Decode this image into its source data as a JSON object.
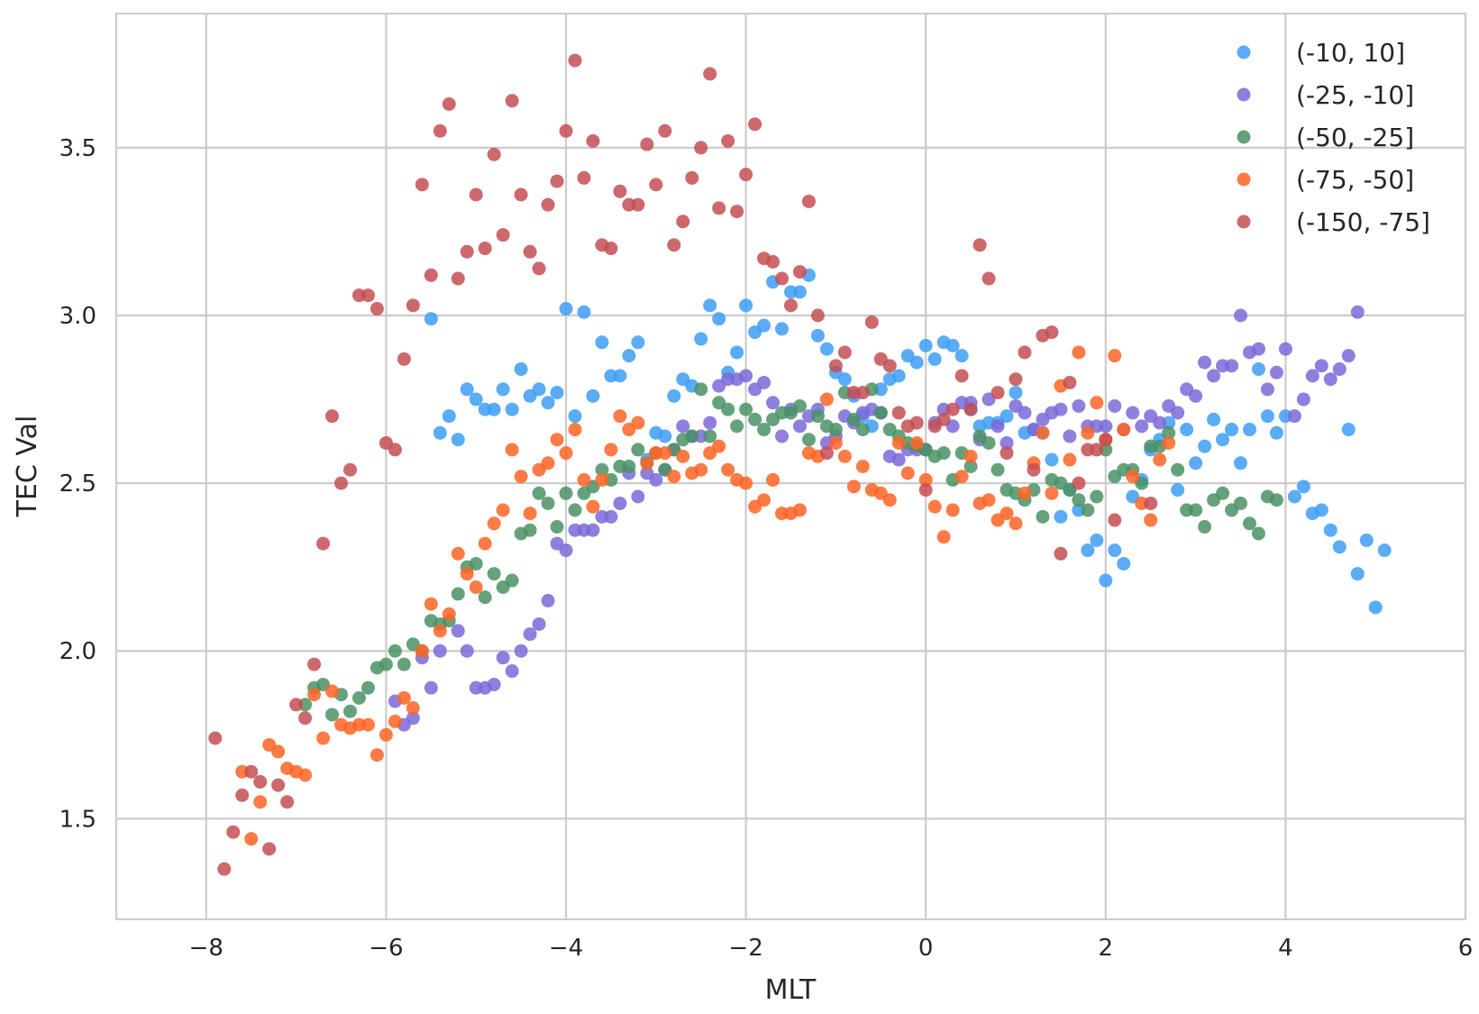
{
  "chart_data": {
    "type": "scatter",
    "title": "",
    "xlabel": "MLT",
    "ylabel": "TEC Val",
    "xlim": [
      -9,
      6
    ],
    "ylim": [
      1.2,
      3.9
    ],
    "xticks": [
      -8,
      -6,
      -4,
      -2,
      0,
      2,
      4,
      6
    ],
    "yticks": [
      1.5,
      2.0,
      2.5,
      3.0,
      3.5
    ],
    "xtick_labels": [
      "−8",
      "−6",
      "−4",
      "−2",
      "0",
      "2",
      "4",
      "6"
    ],
    "ytick_labels": [
      "1.5",
      "2.0",
      "2.5",
      "3.0",
      "3.5"
    ],
    "grid": true,
    "legend_position": "top-right",
    "series": [
      {
        "name": "(-10, 10]",
        "color": "#3d9df5",
        "x": [
          -5.5,
          -5.4,
          -5.3,
          -5.2,
          -5.1,
          -5.0,
          -4.9,
          -4.8,
          -4.7,
          -4.6,
          -4.5,
          -4.4,
          -4.3,
          -4.2,
          -4.1,
          -4.0,
          -3.9,
          -3.8,
          -3.7,
          -3.6,
          -3.5,
          -3.4,
          -3.3,
          -3.2,
          -3.1,
          -3.0,
          -2.9,
          -2.8,
          -2.7,
          -2.6,
          -2.5,
          -2.4,
          -2.3,
          -2.2,
          -2.1,
          -2.0,
          -1.9,
          -1.8,
          -1.7,
          -1.6,
          -1.5,
          -1.4,
          -1.3,
          -1.2,
          -1.1,
          -1.0,
          -0.9,
          -0.8,
          -0.7,
          -0.6,
          -0.5,
          -0.4,
          -0.3,
          -0.2,
          -0.1,
          0.0,
          0.1,
          0.2,
          0.3,
          0.4,
          0.5,
          0.6,
          0.7,
          0.8,
          0.9,
          1.0,
          1.1,
          1.2,
          1.3,
          1.4,
          1.5,
          1.6,
          1.7,
          1.8,
          1.9,
          2.0,
          2.1,
          2.2,
          2.3,
          2.4,
          2.5,
          2.6,
          2.7,
          2.8,
          2.9,
          3.0,
          3.1,
          3.2,
          3.3,
          3.4,
          3.5,
          3.6,
          3.7,
          3.8,
          3.9,
          4.0,
          4.1,
          4.2,
          4.3,
          4.4,
          4.5,
          4.6,
          4.7,
          4.8,
          4.9,
          5.0,
          5.1
        ],
        "y": [
          2.99,
          2.65,
          2.7,
          2.63,
          2.78,
          2.75,
          2.72,
          2.72,
          2.78,
          2.72,
          2.84,
          2.76,
          2.78,
          2.74,
          2.77,
          3.02,
          2.7,
          3.01,
          2.76,
          2.92,
          2.82,
          2.82,
          2.88,
          2.92,
          2.57,
          2.65,
          2.64,
          2.76,
          2.81,
          2.79,
          2.93,
          3.03,
          2.99,
          2.83,
          2.89,
          3.03,
          2.95,
          2.97,
          3.1,
          2.96,
          3.07,
          3.07,
          3.12,
          2.94,
          2.9,
          2.83,
          2.81,
          2.76,
          2.7,
          2.67,
          2.78,
          2.81,
          2.82,
          2.88,
          2.86,
          2.91,
          2.87,
          2.92,
          2.91,
          2.88,
          2.72,
          2.67,
          2.68,
          2.68,
          2.7,
          2.77,
          2.65,
          2.66,
          2.65,
          2.57,
          2.4,
          2.48,
          2.42,
          2.3,
          2.33,
          2.21,
          2.3,
          2.26,
          2.46,
          2.51,
          2.6,
          2.63,
          2.68,
          2.48,
          2.66,
          2.56,
          2.61,
          2.69,
          2.63,
          2.66,
          2.56,
          2.66,
          2.84,
          2.7,
          2.65,
          2.7,
          2.46,
          2.49,
          2.41,
          2.42,
          2.36,
          2.31,
          2.66,
          2.23,
          2.33,
          2.13,
          2.3
        ]
      },
      {
        "name": "(-25, -10]",
        "color": "#7b68d8",
        "x": [
          -5.8,
          -5.7,
          -5.6,
          -5.5,
          -5.4,
          -5.2,
          -5.1,
          -4.9,
          -4.8,
          -4.7,
          -4.6,
          -4.5,
          -4.4,
          -4.3,
          -4.2,
          -4.1,
          -4.0,
          -3.9,
          -3.8,
          -3.7,
          -3.6,
          -3.5,
          -3.4,
          -3.3,
          -3.2,
          -3.1,
          -3.0,
          -2.9,
          -2.8,
          -2.7,
          -2.6,
          -2.5,
          -2.4,
          -2.3,
          -2.2,
          -2.1,
          -2.0,
          -1.9,
          -1.8,
          -1.7,
          -1.6,
          -1.5,
          -1.4,
          -1.3,
          -1.2,
          -1.1,
          -1.0,
          -0.9,
          -0.8,
          -0.7,
          -0.6,
          -0.5,
          -0.4,
          -0.3,
          -0.2,
          -0.1,
          0.0,
          0.1,
          0.2,
          0.3,
          0.4,
          0.5,
          0.6,
          0.7,
          0.8,
          0.9,
          1.0,
          1.1,
          1.2,
          1.3,
          1.4,
          1.5,
          1.6,
          1.7,
          1.8,
          1.9,
          2.0,
          2.1,
          2.2,
          2.3,
          2.4,
          2.5,
          2.6,
          2.7,
          2.8,
          2.9,
          3.0,
          3.1,
          3.2,
          3.3,
          3.4,
          3.5,
          3.6,
          3.7,
          3.8,
          3.9,
          4.0,
          4.1,
          4.2,
          4.3,
          4.4,
          4.5,
          4.6,
          4.7,
          4.8,
          -5.9,
          -5.0
        ],
        "y": [
          1.78,
          1.8,
          1.98,
          1.89,
          2.0,
          2.06,
          2.0,
          1.89,
          1.9,
          1.98,
          1.94,
          2.0,
          2.05,
          2.08,
          2.15,
          2.32,
          2.3,
          2.36,
          2.36,
          2.36,
          2.4,
          2.4,
          2.44,
          2.53,
          2.46,
          2.53,
          2.51,
          2.54,
          2.6,
          2.67,
          2.64,
          2.64,
          2.68,
          2.79,
          2.81,
          2.81,
          2.82,
          2.78,
          2.8,
          2.74,
          2.64,
          2.72,
          2.67,
          2.7,
          2.72,
          2.62,
          2.64,
          2.7,
          2.68,
          2.71,
          2.72,
          2.71,
          2.58,
          2.57,
          2.6,
          2.6,
          2.6,
          2.68,
          2.72,
          2.67,
          2.74,
          2.74,
          2.63,
          2.75,
          2.67,
          2.62,
          2.73,
          2.71,
          2.66,
          2.69,
          2.71,
          2.72,
          2.64,
          2.73,
          2.67,
          2.67,
          2.67,
          2.73,
          2.66,
          2.71,
          2.67,
          2.7,
          2.68,
          2.73,
          2.71,
          2.78,
          2.76,
          2.86,
          2.82,
          2.85,
          2.85,
          3.0,
          2.89,
          2.9,
          2.78,
          2.83,
          2.9,
          2.7,
          2.75,
          2.82,
          2.85,
          2.81,
          2.84,
          2.88,
          3.01,
          1.85,
          1.89
        ]
      },
      {
        "name": "(-50, -25]",
        "color": "#4a9265",
        "x": [
          -6.9,
          -6.8,
          -6.7,
          -6.6,
          -6.5,
          -6.4,
          -6.3,
          -6.2,
          -6.1,
          -6.0,
          -5.9,
          -5.8,
          -5.7,
          -5.6,
          -5.5,
          -5.4,
          -5.3,
          -5.2,
          -5.1,
          -5.0,
          -4.9,
          -4.8,
          -4.7,
          -4.6,
          -4.5,
          -4.4,
          -4.3,
          -4.2,
          -4.1,
          -4.0,
          -3.9,
          -3.8,
          -3.7,
          -3.6,
          -3.5,
          -3.4,
          -3.3,
          -3.2,
          -3.1,
          -3.0,
          -2.9,
          -2.8,
          -2.7,
          -2.6,
          -2.5,
          -2.4,
          -2.3,
          -2.2,
          -2.1,
          -2.0,
          -1.9,
          -1.8,
          -1.7,
          -1.6,
          -1.5,
          -1.4,
          -1.3,
          -1.2,
          -1.1,
          -1.0,
          -0.9,
          -0.8,
          -0.7,
          -0.6,
          -0.5,
          -0.4,
          -0.3,
          -0.2,
          -0.1,
          0.0,
          0.1,
          0.2,
          0.3,
          0.4,
          0.5,
          0.6,
          0.7,
          0.8,
          0.9,
          1.0,
          1.1,
          1.2,
          1.3,
          1.4,
          1.5,
          1.6,
          1.7,
          1.8,
          1.9,
          2.0,
          2.1,
          2.2,
          2.3,
          2.4,
          2.5,
          2.6,
          2.7,
          2.8,
          2.9,
          3.0,
          3.1,
          3.2,
          3.3,
          3.4,
          3.5,
          3.6,
          3.7,
          3.8,
          3.9
        ],
        "y": [
          1.84,
          1.89,
          1.9,
          1.81,
          1.87,
          1.82,
          1.86,
          1.89,
          1.95,
          1.96,
          2.0,
          1.96,
          2.02,
          2.0,
          2.09,
          2.08,
          2.09,
          2.17,
          2.25,
          2.26,
          2.16,
          2.23,
          2.19,
          2.21,
          2.35,
          2.36,
          2.47,
          2.44,
          2.37,
          2.47,
          2.42,
          2.47,
          2.49,
          2.54,
          2.51,
          2.55,
          2.55,
          2.6,
          2.56,
          2.59,
          2.54,
          2.6,
          2.63,
          2.64,
          2.78,
          2.64,
          2.74,
          2.72,
          2.67,
          2.72,
          2.69,
          2.66,
          2.69,
          2.71,
          2.71,
          2.73,
          2.63,
          2.7,
          2.67,
          2.66,
          2.77,
          2.69,
          2.66,
          2.78,
          2.71,
          2.66,
          2.64,
          2.62,
          2.61,
          2.6,
          2.58,
          2.59,
          2.51,
          2.59,
          2.55,
          2.64,
          2.62,
          2.54,
          2.48,
          2.47,
          2.45,
          2.48,
          2.4,
          2.51,
          2.5,
          2.48,
          2.45,
          2.42,
          2.46,
          2.6,
          2.52,
          2.54,
          2.54,
          2.5,
          2.61,
          2.61,
          2.65,
          2.54,
          2.42,
          2.42,
          2.37,
          2.45,
          2.47,
          2.42,
          2.44,
          2.38,
          2.35,
          2.46,
          2.45
        ]
      },
      {
        "name": "(-75, -50]",
        "color": "#ff6424",
        "x": [
          -7.6,
          -7.5,
          -7.4,
          -7.3,
          -7.2,
          -7.1,
          -7.0,
          -6.9,
          -6.8,
          -6.7,
          -6.6,
          -6.5,
          -6.4,
          -6.3,
          -6.2,
          -6.1,
          -6.0,
          -5.9,
          -5.8,
          -5.7,
          -5.6,
          -5.5,
          -5.4,
          -5.3,
          -5.2,
          -5.1,
          -5.0,
          -4.9,
          -4.8,
          -4.7,
          -4.6,
          -4.5,
          -4.4,
          -4.3,
          -4.2,
          -4.1,
          -4.0,
          -3.9,
          -3.8,
          -3.7,
          -3.6,
          -3.5,
          -3.4,
          -3.3,
          -3.2,
          -3.1,
          -3.0,
          -2.9,
          -2.8,
          -2.7,
          -2.6,
          -2.5,
          -2.4,
          -2.3,
          -2.2,
          -2.1,
          -2.0,
          -1.9,
          -1.8,
          -1.7,
          -1.6,
          -1.5,
          -1.4,
          -1.3,
          -1.2,
          -1.1,
          -1.0,
          -0.9,
          -0.8,
          -0.7,
          -0.6,
          -0.5,
          -0.4,
          -0.3,
          -0.2,
          -0.1,
          0.0,
          0.1,
          0.2,
          0.3,
          0.4,
          0.5,
          0.6,
          0.7,
          0.8,
          0.9,
          1.0,
          1.1,
          1.2,
          1.3,
          1.4,
          1.5,
          1.6,
          1.7,
          1.8,
          1.9,
          2.0,
          2.1,
          2.2,
          2.3,
          2.4,
          2.5,
          2.6,
          2.7
        ],
        "y": [
          1.64,
          1.44,
          1.55,
          1.72,
          1.7,
          1.65,
          1.64,
          1.63,
          1.87,
          1.74,
          1.88,
          1.78,
          1.77,
          1.78,
          1.78,
          1.69,
          1.75,
          1.79,
          1.86,
          1.83,
          2.0,
          2.14,
          2.06,
          2.11,
          2.29,
          2.23,
          2.19,
          2.32,
          2.38,
          2.42,
          2.6,
          2.52,
          2.41,
          2.54,
          2.56,
          2.63,
          2.59,
          2.66,
          2.51,
          2.43,
          2.51,
          2.6,
          2.7,
          2.66,
          2.68,
          2.56,
          2.59,
          2.59,
          2.52,
          2.58,
          2.53,
          2.54,
          2.59,
          2.61,
          2.54,
          2.51,
          2.5,
          2.43,
          2.45,
          2.51,
          2.41,
          2.41,
          2.42,
          2.59,
          2.58,
          2.75,
          2.62,
          2.58,
          2.49,
          2.55,
          2.48,
          2.47,
          2.45,
          2.62,
          2.53,
          2.62,
          2.51,
          2.43,
          2.34,
          2.42,
          2.52,
          2.58,
          2.44,
          2.45,
          2.39,
          2.41,
          2.38,
          2.47,
          2.56,
          2.65,
          2.47,
          2.79,
          2.57,
          2.89,
          2.65,
          2.74,
          2.63,
          2.88,
          2.66,
          2.52,
          2.44,
          2.39,
          2.57,
          2.62
        ]
      },
      {
        "name": "(-150, -75]",
        "color": "#c44e52",
        "x": [
          -7.9,
          -7.8,
          -7.7,
          -7.6,
          -7.5,
          -7.4,
          -7.3,
          -7.2,
          -7.1,
          -7.0,
          -6.9,
          -6.8,
          -6.7,
          -6.6,
          -6.5,
          -6.4,
          -6.3,
          -6.2,
          -6.1,
          -6.0,
          -5.9,
          -5.8,
          -5.7,
          -5.6,
          -5.5,
          -5.4,
          -5.3,
          -5.2,
          -5.1,
          -5.0,
          -4.9,
          -4.8,
          -4.7,
          -4.6,
          -4.5,
          -4.4,
          -4.3,
          -4.2,
          -4.1,
          -4.0,
          -3.9,
          -3.8,
          -3.7,
          -3.6,
          -3.5,
          -3.4,
          -3.3,
          -3.2,
          -3.1,
          -3.0,
          -2.9,
          -2.8,
          -2.7,
          -2.6,
          -2.5,
          -2.4,
          -2.3,
          -2.2,
          -2.1,
          -2.0,
          -1.9,
          -1.8,
          -1.7,
          -1.6,
          -1.5,
          -1.4,
          -1.3,
          -1.2,
          -1.1,
          -1.0,
          -0.9,
          -0.8,
          -0.7,
          -0.6,
          -0.5,
          -0.4,
          -0.3,
          -0.2,
          -0.1,
          0.0,
          0.1,
          0.2,
          0.3,
          0.4,
          0.5,
          0.6,
          0.7,
          0.8,
          0.9,
          1.0,
          1.1,
          1.2,
          1.3,
          1.4,
          1.5,
          1.6,
          1.7,
          1.8,
          1.9,
          2.0,
          2.1,
          2.5
        ],
        "y": [
          1.74,
          1.35,
          1.46,
          1.57,
          1.64,
          1.61,
          1.41,
          1.6,
          1.55,
          1.84,
          1.8,
          1.96,
          2.32,
          2.7,
          2.5,
          2.54,
          3.06,
          3.06,
          3.02,
          2.62,
          2.6,
          2.87,
          3.03,
          3.39,
          3.12,
          3.55,
          3.63,
          3.11,
          3.19,
          3.36,
          3.2,
          3.48,
          3.24,
          3.64,
          3.36,
          3.19,
          3.14,
          3.33,
          3.4,
          3.55,
          3.76,
          3.41,
          3.52,
          3.21,
          3.2,
          3.37,
          3.33,
          3.33,
          3.51,
          3.39,
          3.55,
          3.21,
          3.28,
          3.41,
          3.5,
          3.72,
          3.32,
          3.52,
          3.31,
          3.42,
          3.57,
          3.17,
          3.16,
          3.11,
          3.03,
          3.13,
          3.34,
          3.0,
          2.59,
          2.85,
          2.89,
          2.77,
          2.77,
          2.98,
          2.87,
          2.85,
          2.71,
          2.67,
          2.68,
          2.48,
          2.67,
          2.69,
          2.72,
          2.82,
          2.72,
          3.21,
          3.11,
          2.77,
          2.59,
          2.81,
          2.89,
          2.54,
          2.94,
          2.95,
          2.29,
          2.8,
          2.5,
          2.6,
          2.6,
          2.63,
          2.39,
          2.44
        ]
      }
    ]
  }
}
